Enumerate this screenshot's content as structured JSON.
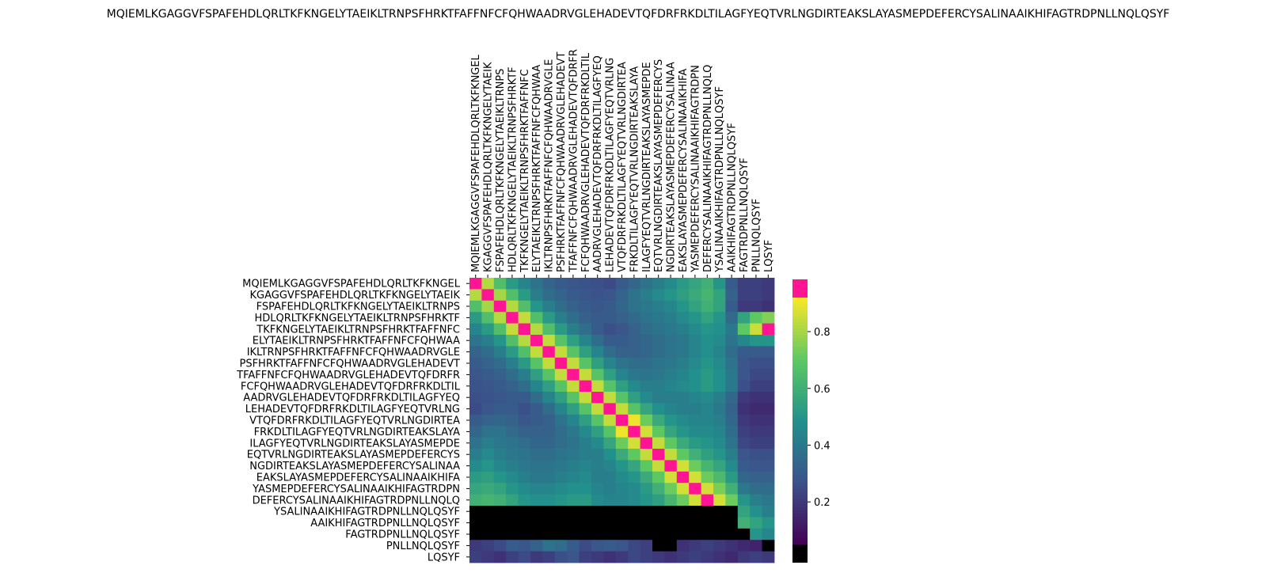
{
  "chart_data": {
    "type": "heatmap",
    "title": "MQIEMLKGAGGVFSPAFEHDLQRLTKFKNGELYTAEIKLTRNPSFHRKTFAFFNFCFQHWAADRVGLEHADEVTQFDRFRKDLTILAGFYEQTVRLNGDIRTEAKSLAYASMEPDEFERCYSALINAAIKHIFAGTRDPNLLNQLQSYF",
    "x_tick_position": "top",
    "x_tick_rotation": 90,
    "xticklabels": [
      "MQIEMLKGAGGVFSPAFEHDLQRLTKFKNGEL",
      "KGAGGVFSPAFEHDLQRLTKFKNGELYTAEIK",
      "FSPAFEHDLQRLTKFKNGELYTAEIKLTRNPS",
      "HDLQRLTKFKNGELYTAEIKLTRNPSFHRKTF",
      "TKFKNGELYTAEIKLTRNPSFHRKTFAFFNFC",
      "ELYTAEIKLTRNPSFHRKTFAFFNFCFQHWAA",
      "IKLTRNPSFHRKTFAFFNFCFQHWAADRVGLE",
      "PSFHRKTFAFFNFCFQHWAADRVGLEHADEVT",
      "TFAFFNFCFQHWAADRVGLEHADEVTQFDRFR",
      "FCFQHWAADRVGLEHADEVTQFDRFRKDLTIL",
      "AADRVGLEHADEVTQFDRFRKDLTILAGFYEQ",
      "LEHADEVTQFDRFRKDLTILAGFYEQTVRLNG",
      "VTQFDRFRKDLTILAGFYEQTVRLNGDIRTEA",
      "FRKDLTILAGFYEQTVRLNGDIRTEAKSLAYA",
      "ILAGFYEQTVRLNGDIRTEAKSLAYASMEPDE",
      "EQTVRLNGDIRTEAKSLAYASMEPDEFERCYS",
      "NGDIRTEAKSLAYASMEPDEFERCYSALINAA",
      "EAKSLAYASMEPDEFERCYSALINAAIKHIFA",
      "YASMEPDEFERCYSALINAAIKHIFAGTRDPN",
      "DEFERCYSALINAAIKHIFAGTRDPNLLNQLQ",
      "YSALINAAIKHIFAGTRDPNLLNQLQSYF",
      "AAIKHIFAGTRDPNLLNQLQSYF",
      "FAGTRDPNLLNQLQSYF",
      "PNLLNQLQSYF",
      "LQSYF"
    ],
    "yticklabels": [
      "MQIEMLKGAGGVFSPAFEHDLQRLTKFKNGEL",
      "KGAGGVFSPAFEHDLQRLTKFKNGELYTAEIK",
      "FSPAFEHDLQRLTKFKNGELYTAEIKLTRNPS",
      "HDLQRLTKFKNGELYTAEIKLTRNPSFHRKTF",
      "TKFKNGELYTAEIKLTRNPSFHRKTFAFFNFC",
      "ELYTAEIKLTRNPSFHRKTFAFFNFCFQHWAA",
      "IKLTRNPSFHRKTFAFFNFCFQHWAADRVGLE",
      "PSFHRKTFAFFNFCFQHWAADRVGLEHADEVT",
      "TFAFFNFCFQHWAADRVGLEHADEVTQFDRFR",
      "FCFQHWAADRVGLEHADEVTQFDRFRKDLTIL",
      "AADRVGLEHADEVTQFDRFRKDLTILAGFYEQ",
      "LEHADEVTQFDRFRKDLTILAGFYEQTVRLNG",
      "VTQFDRFRKDLTILAGFYEQTVRLNGDIRTEA",
      "FRKDLTILAGFYEQTVRLNGDIRTEAKSLAYA",
      "ILAGFYEQTVRLNGDIRTEAKSLAYASMEPDE",
      "EQTVRLNGDIRTEAKSLAYASMEPDEFERCYS",
      "NGDIRTEAKSLAYASMEPDEFERCYSALINAA",
      "EAKSLAYASMEPDEFERCYSALINAAIKHIFA",
      "YASMEPDEFERCYSALINAAIKHIFAGTRDPN",
      "DEFERCYSALINAAIKHIFAGTRDPNLLNQLQ",
      "YSALINAAIKHIFAGTRDPNLLNQLQSYF",
      "AAIKHIFAGTRDPNLLNQLQSYF",
      "FAGTRDPNLLNQLQSYF",
      "PNLLNQLQSYF",
      "LQSYF"
    ],
    "colormap": "viridis",
    "over_color": "#ff1493",
    "under_color": "#000000",
    "colorbar": {
      "ticks": [
        "0.2",
        "0.4",
        "0.6",
        "0.8"
      ],
      "tick_values": [
        0.2,
        0.4,
        0.6,
        0.8
      ],
      "vmin": 0.05,
      "vmax": 0.92,
      "extend": "both"
    },
    "cells": [
      [
        0.95,
        0.82,
        0.66,
        0.52,
        0.44,
        0.38,
        0.33,
        0.3,
        0.28,
        0.27,
        0.26,
        0.25,
        0.3,
        0.34,
        0.38,
        0.42,
        0.46,
        0.52,
        0.56,
        0.6,
        0.5,
        0.3,
        0.22,
        0.22,
        0.2
      ],
      [
        0.82,
        0.96,
        0.8,
        0.66,
        0.52,
        0.42,
        0.36,
        0.33,
        0.3,
        0.28,
        0.27,
        0.28,
        0.33,
        0.38,
        0.42,
        0.46,
        0.5,
        0.54,
        0.58,
        0.62,
        0.55,
        0.32,
        0.22,
        0.22,
        0.2
      ],
      [
        0.66,
        0.8,
        0.96,
        0.82,
        0.66,
        0.5,
        0.42,
        0.36,
        0.32,
        0.3,
        0.28,
        0.3,
        0.34,
        0.38,
        0.4,
        0.42,
        0.45,
        0.5,
        0.55,
        0.6,
        0.55,
        0.3,
        0.2,
        0.2,
        0.18
      ],
      [
        0.52,
        0.66,
        0.82,
        0.96,
        0.84,
        0.66,
        0.52,
        0.42,
        0.36,
        0.32,
        0.3,
        0.3,
        0.32,
        0.35,
        0.38,
        0.4,
        0.42,
        0.46,
        0.5,
        0.55,
        0.5,
        0.35,
        0.55,
        0.7,
        0.75
      ],
      [
        0.44,
        0.52,
        0.66,
        0.84,
        0.96,
        0.82,
        0.66,
        0.52,
        0.42,
        0.36,
        0.3,
        0.26,
        0.28,
        0.32,
        0.36,
        0.38,
        0.4,
        0.42,
        0.46,
        0.5,
        0.48,
        0.4,
        0.7,
        0.85,
        0.93
      ],
      [
        0.38,
        0.42,
        0.5,
        0.66,
        0.82,
        0.96,
        0.84,
        0.68,
        0.54,
        0.44,
        0.36,
        0.3,
        0.3,
        0.32,
        0.34,
        0.36,
        0.38,
        0.4,
        0.44,
        0.48,
        0.46,
        0.38,
        0.45,
        0.5,
        0.5
      ],
      [
        0.33,
        0.36,
        0.42,
        0.52,
        0.66,
        0.84,
        0.96,
        0.84,
        0.68,
        0.54,
        0.44,
        0.36,
        0.32,
        0.32,
        0.34,
        0.36,
        0.38,
        0.4,
        0.44,
        0.48,
        0.44,
        0.36,
        0.3,
        0.3,
        0.3
      ],
      [
        0.3,
        0.33,
        0.36,
        0.42,
        0.52,
        0.68,
        0.84,
        0.96,
        0.84,
        0.68,
        0.54,
        0.44,
        0.38,
        0.36,
        0.36,
        0.38,
        0.4,
        0.42,
        0.46,
        0.5,
        0.46,
        0.38,
        0.28,
        0.26,
        0.26
      ],
      [
        0.28,
        0.3,
        0.32,
        0.36,
        0.42,
        0.54,
        0.68,
        0.84,
        0.96,
        0.84,
        0.68,
        0.54,
        0.44,
        0.4,
        0.38,
        0.4,
        0.42,
        0.44,
        0.48,
        0.52,
        0.48,
        0.4,
        0.28,
        0.24,
        0.24
      ],
      [
        0.27,
        0.28,
        0.3,
        0.32,
        0.36,
        0.44,
        0.54,
        0.68,
        0.84,
        0.96,
        0.84,
        0.68,
        0.54,
        0.46,
        0.42,
        0.42,
        0.44,
        0.46,
        0.48,
        0.52,
        0.48,
        0.4,
        0.26,
        0.22,
        0.22
      ],
      [
        0.26,
        0.27,
        0.28,
        0.3,
        0.3,
        0.36,
        0.44,
        0.54,
        0.68,
        0.84,
        0.96,
        0.84,
        0.68,
        0.54,
        0.46,
        0.42,
        0.42,
        0.42,
        0.44,
        0.46,
        0.42,
        0.34,
        0.2,
        0.18,
        0.18
      ],
      [
        0.25,
        0.28,
        0.3,
        0.3,
        0.26,
        0.3,
        0.36,
        0.44,
        0.54,
        0.68,
        0.84,
        0.96,
        0.84,
        0.68,
        0.56,
        0.48,
        0.44,
        0.42,
        0.42,
        0.44,
        0.4,
        0.32,
        0.18,
        0.16,
        0.16
      ],
      [
        0.3,
        0.33,
        0.34,
        0.32,
        0.28,
        0.3,
        0.32,
        0.38,
        0.44,
        0.54,
        0.68,
        0.84,
        0.97,
        0.9,
        0.72,
        0.58,
        0.5,
        0.46,
        0.44,
        0.44,
        0.42,
        0.34,
        0.2,
        0.18,
        0.18
      ],
      [
        0.34,
        0.38,
        0.38,
        0.35,
        0.32,
        0.32,
        0.32,
        0.36,
        0.4,
        0.46,
        0.54,
        0.68,
        0.9,
        0.97,
        0.86,
        0.7,
        0.56,
        0.5,
        0.46,
        0.46,
        0.44,
        0.36,
        0.22,
        0.2,
        0.2
      ],
      [
        0.38,
        0.42,
        0.4,
        0.38,
        0.36,
        0.34,
        0.34,
        0.36,
        0.38,
        0.42,
        0.46,
        0.56,
        0.72,
        0.86,
        0.96,
        0.84,
        0.7,
        0.58,
        0.52,
        0.5,
        0.46,
        0.38,
        0.24,
        0.22,
        0.22
      ],
      [
        0.42,
        0.46,
        0.42,
        0.4,
        0.38,
        0.36,
        0.36,
        0.38,
        0.4,
        0.42,
        0.42,
        0.48,
        0.58,
        0.7,
        0.84,
        0.96,
        0.84,
        0.7,
        0.6,
        0.54,
        0.5,
        0.42,
        0.28,
        0.26,
        0.26
      ],
      [
        0.46,
        0.5,
        0.45,
        0.42,
        0.4,
        0.38,
        0.38,
        0.4,
        0.42,
        0.44,
        0.42,
        0.44,
        0.5,
        0.56,
        0.7,
        0.84,
        0.96,
        0.86,
        0.72,
        0.62,
        0.56,
        0.46,
        0.3,
        0.28,
        0.28
      ],
      [
        0.52,
        0.54,
        0.5,
        0.46,
        0.42,
        0.4,
        0.4,
        0.42,
        0.44,
        0.46,
        0.42,
        0.42,
        0.46,
        0.5,
        0.58,
        0.7,
        0.86,
        0.96,
        0.86,
        0.72,
        0.64,
        0.52,
        0.34,
        0.32,
        0.32
      ],
      [
        0.56,
        0.58,
        0.55,
        0.5,
        0.46,
        0.44,
        0.44,
        0.46,
        0.48,
        0.48,
        0.44,
        0.42,
        0.44,
        0.46,
        0.52,
        0.6,
        0.72,
        0.86,
        0.96,
        0.86,
        0.74,
        0.6,
        0.4,
        0.36,
        0.36
      ],
      [
        0.6,
        0.62,
        0.6,
        0.55,
        0.5,
        0.48,
        0.48,
        0.5,
        0.52,
        0.52,
        0.46,
        0.44,
        0.44,
        0.46,
        0.5,
        0.54,
        0.62,
        0.72,
        0.86,
        0.96,
        0.86,
        0.72,
        0.5,
        0.42,
        0.4
      ],
      [
        0.01,
        0.01,
        0.01,
        0.01,
        0.01,
        0.01,
        0.01,
        0.01,
        0.01,
        0.01,
        0.01,
        0.01,
        0.01,
        0.01,
        0.01,
        0.01,
        0.01,
        0.01,
        0.01,
        0.01,
        0.01,
        0.01,
        0.55,
        0.48,
        0.42
      ],
      [
        0.01,
        0.01,
        0.01,
        0.01,
        0.01,
        0.01,
        0.01,
        0.01,
        0.01,
        0.01,
        0.01,
        0.01,
        0.01,
        0.01,
        0.01,
        0.01,
        0.01,
        0.01,
        0.01,
        0.01,
        0.01,
        0.01,
        0.6,
        0.55,
        0.5
      ],
      [
        0.01,
        0.01,
        0.01,
        0.01,
        0.01,
        0.01,
        0.01,
        0.01,
        0.01,
        0.01,
        0.01,
        0.01,
        0.01,
        0.01,
        0.01,
        0.01,
        0.01,
        0.01,
        0.01,
        0.01,
        0.01,
        0.01,
        0.01,
        0.5,
        0.45
      ],
      [
        0.2,
        0.22,
        0.25,
        0.3,
        0.28,
        0.32,
        0.38,
        0.36,
        0.3,
        0.25,
        0.28,
        0.3,
        0.28,
        0.24,
        0.22,
        0.01,
        0.01,
        0.18,
        0.2,
        0.22,
        0.2,
        0.18,
        0.16,
        0.14,
        0.01
      ],
      [
        0.22,
        0.2,
        0.18,
        0.22,
        0.25,
        0.2,
        0.22,
        0.26,
        0.28,
        0.22,
        0.2,
        0.18,
        0.2,
        0.24,
        0.22,
        0.2,
        0.18,
        0.2,
        0.22,
        0.2,
        0.18,
        0.16,
        0.2,
        0.22,
        0.2
      ]
    ]
  }
}
